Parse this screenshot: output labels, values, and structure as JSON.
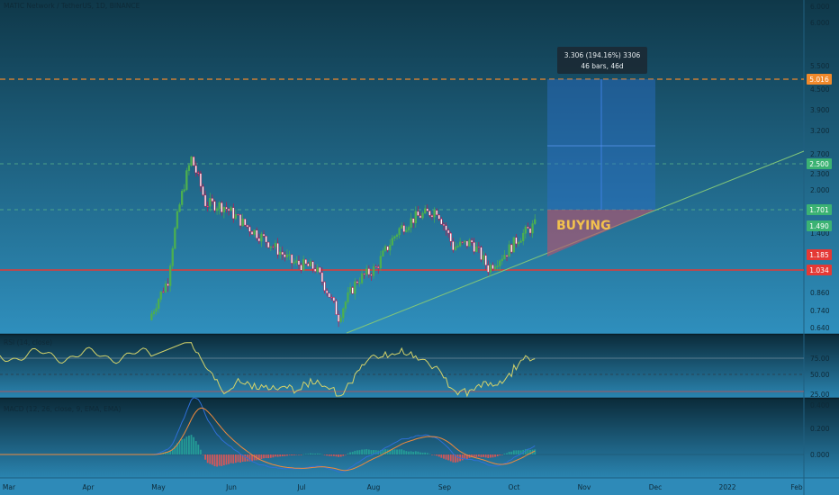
{
  "header": {
    "title": "MATIC Network / TetherUS, 1D, BINANCE"
  },
  "measurement": {
    "line1": "3.306 (194.16%) 3306",
    "line2": "46 bars, 46d"
  },
  "annotation": {
    "buying": "BUYING"
  },
  "price_axis": {
    "ticks": [
      "6.000",
      "5.500",
      "4.500",
      "3.900",
      "3.200",
      "2.700",
      "2.300",
      "2.000",
      "1.400",
      "0.860",
      "0.740",
      "0.640"
    ]
  },
  "rsi_panel": {
    "label": "RSI (14, close)",
    "ticks": [
      "75.00",
      "50.00",
      "25.00"
    ]
  },
  "macd_panel": {
    "label": "MACD (12, 26, close, 9, EMA, EMA)",
    "ticks": [
      "0.400",
      "0.200",
      "0.000"
    ]
  },
  "time_axis": {
    "labels": [
      "Mar",
      "Apr",
      "May",
      "Jun",
      "Jul",
      "Aug",
      "Sep",
      "Oct",
      "Nov",
      "Dec",
      "2022",
      "Feb"
    ]
  },
  "price_badges": [
    {
      "name": "target",
      "value": "5.016",
      "color": "#f0892b"
    },
    {
      "name": "level-2500",
      "value": "2.500",
      "color": "#3bb273"
    },
    {
      "name": "level-1701",
      "value": "1.701",
      "color": "#3bb273"
    },
    {
      "name": "current",
      "value": "1.490",
      "color": "#3bb273"
    },
    {
      "name": "level-1185",
      "value": "1.185",
      "color": "#e53935"
    },
    {
      "name": "support",
      "value": "1.034",
      "color": "#e53935"
    }
  ],
  "chart_data": {
    "type": "candlestick",
    "title": "MATIC Network / TetherUS, 1D, BINANCE",
    "price_scale": "log",
    "x_range": [
      "Mar 2021",
      "Feb 2022"
    ],
    "levels": {
      "target_dashed": 5.016,
      "resistance_dashed_1": 2.5,
      "resistance_dashed_2": 1.701,
      "support_solid": 1.034
    },
    "long_position": {
      "entry": 1.701,
      "target": 5.016,
      "stop": 1.185,
      "change": 3.306,
      "change_pct": 194.16,
      "bars": 46
    },
    "close_series": [
      {
        "date": "2021-05-01",
        "close": 0.72
      },
      {
        "date": "2021-05-08",
        "close": 0.95
      },
      {
        "date": "2021-05-12",
        "close": 1.6
      },
      {
        "date": "2021-05-18",
        "close": 2.6
      },
      {
        "date": "2021-05-24",
        "close": 1.8
      },
      {
        "date": "2021-06-01",
        "close": 1.75
      },
      {
        "date": "2021-06-10",
        "close": 1.5
      },
      {
        "date": "2021-06-20",
        "close": 1.3
      },
      {
        "date": "2021-06-30",
        "close": 1.1
      },
      {
        "date": "2021-07-10",
        "close": 1.05
      },
      {
        "date": "2021-07-20",
        "close": 0.7
      },
      {
        "date": "2021-07-28",
        "close": 0.95
      },
      {
        "date": "2021-08-05",
        "close": 1.05
      },
      {
        "date": "2021-08-15",
        "close": 1.45
      },
      {
        "date": "2021-08-22",
        "close": 1.6
      },
      {
        "date": "2021-08-31",
        "close": 1.7
      },
      {
        "date": "2021-09-07",
        "close": 1.25
      },
      {
        "date": "2021-09-15",
        "close": 1.3
      },
      {
        "date": "2021-09-22",
        "close": 1.05
      },
      {
        "date": "2021-09-30",
        "close": 1.2
      },
      {
        "date": "2021-10-05",
        "close": 1.35
      },
      {
        "date": "2021-10-12",
        "close": 1.5
      }
    ],
    "rsi": {
      "levels": [
        70,
        50,
        30
      ],
      "last": 65
    },
    "macd": {
      "fast": 12,
      "slow": 26,
      "signal": 9,
      "last_hist": 0.01
    }
  }
}
